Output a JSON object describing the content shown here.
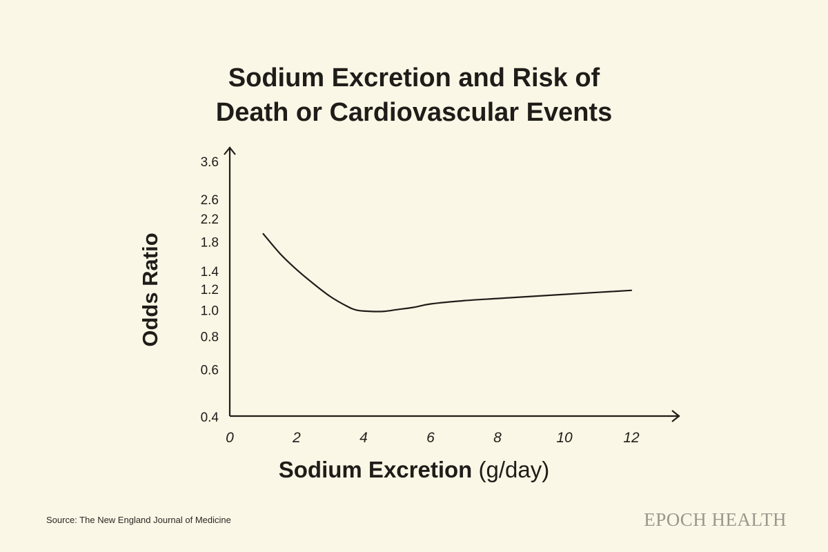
{
  "chart_data": {
    "type": "line",
    "title_lines": [
      "Sodium Excretion and Risk of",
      "Death or Cardiovascular Events"
    ],
    "xlabel": "Sodium Excretion",
    "xlabel_unit": "(g/day)",
    "ylabel": "Odds Ratio",
    "x_ticks": [
      0,
      2,
      4,
      6,
      8,
      10,
      12
    ],
    "y_ticks": [
      "0.4",
      "0.6",
      "0.8",
      "1.0",
      "1.2",
      "1.4",
      "1.8",
      "2.2",
      "2.6",
      "3.6"
    ],
    "xlim": [
      0,
      13.3
    ],
    "ylim": [
      0.4,
      3.6
    ],
    "y_scale": "log",
    "series": [
      {
        "name": "Odds Ratio",
        "x": [
          1.0,
          1.5,
          2.0,
          2.5,
          3.0,
          3.5,
          3.8,
          4.2,
          4.6,
          5.0,
          5.5,
          6.0,
          7.0,
          8.0,
          9.0,
          10.0,
          11.0,
          12.0
        ],
        "y": [
          1.92,
          1.62,
          1.41,
          1.25,
          1.12,
          1.03,
          0.995,
          0.985,
          0.985,
          1.0,
          1.02,
          1.05,
          1.08,
          1.1,
          1.12,
          1.14,
          1.16,
          1.18
        ]
      }
    ]
  },
  "footer": {
    "source": "Source: The New England Journal of Medicine",
    "brand": "EPOCH HEALTH"
  }
}
